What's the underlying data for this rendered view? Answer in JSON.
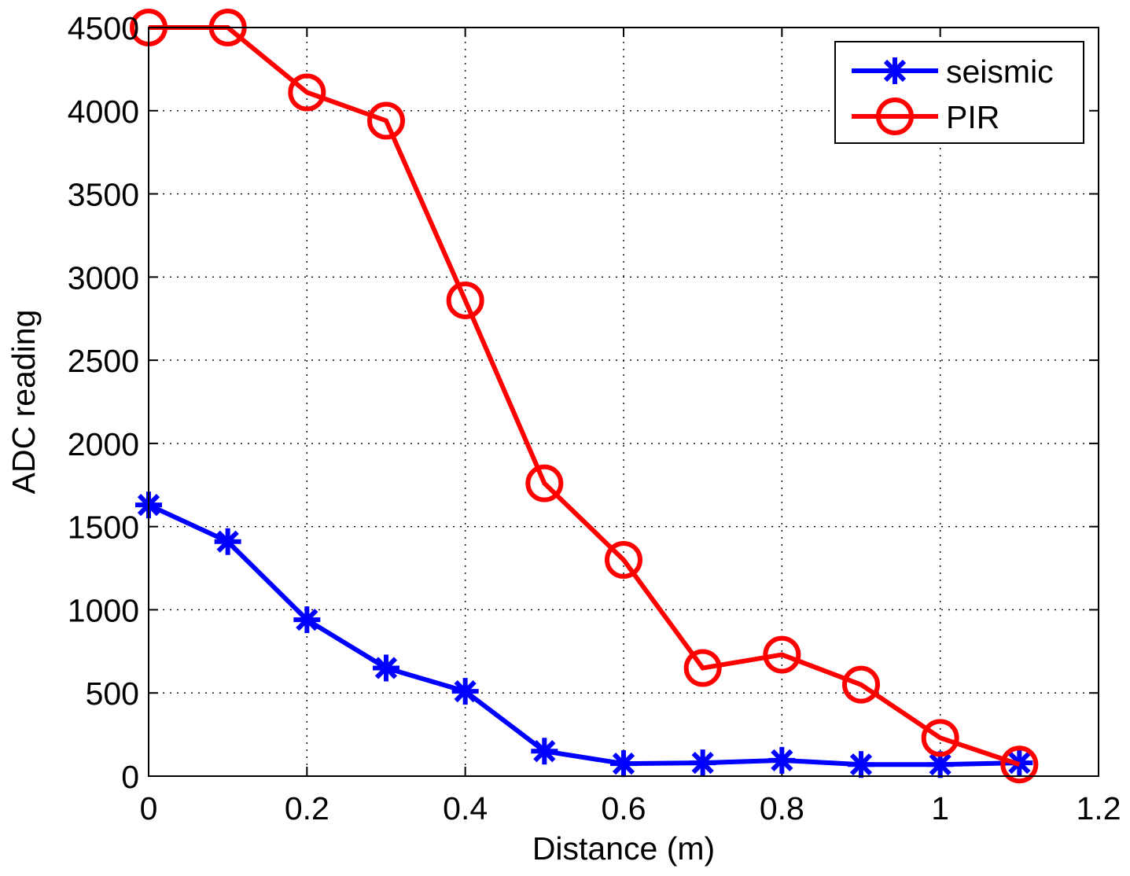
{
  "chart_data": {
    "type": "line",
    "title": "",
    "xlabel": "Distance (m)",
    "ylabel": "ADC reading",
    "xlim": [
      0,
      1.2
    ],
    "ylim": [
      0,
      4500
    ],
    "xticks": [
      0,
      0.2,
      0.4,
      0.6,
      0.8,
      1,
      1.2
    ],
    "xtick_labels": [
      "0",
      "0.2",
      "0.4",
      "0.6",
      "0.8",
      "1",
      "1.2"
    ],
    "yticks": [
      0,
      500,
      1000,
      1500,
      2000,
      2500,
      3000,
      3500,
      4000,
      4500
    ],
    "ytick_labels": [
      "0",
      "500",
      "1000",
      "1500",
      "2000",
      "2500",
      "3000",
      "3500",
      "4000",
      "4500"
    ],
    "grid": true,
    "legend_position": "top-right",
    "x": [
      0,
      0.1,
      0.2,
      0.3,
      0.4,
      0.5,
      0.6,
      0.7,
      0.8,
      0.9,
      1.0,
      1.1
    ],
    "series": [
      {
        "name": "seismic",
        "color": "#0000ff",
        "marker": "asterisk",
        "values": [
          1630,
          1410,
          940,
          650,
          510,
          150,
          75,
          80,
          95,
          70,
          70,
          80
        ]
      },
      {
        "name": "PIR",
        "color": "#ff0000",
        "marker": "circle",
        "values": [
          4500,
          4500,
          4110,
          3940,
          2860,
          1760,
          1300,
          650,
          730,
          550,
          230,
          70
        ]
      }
    ]
  }
}
